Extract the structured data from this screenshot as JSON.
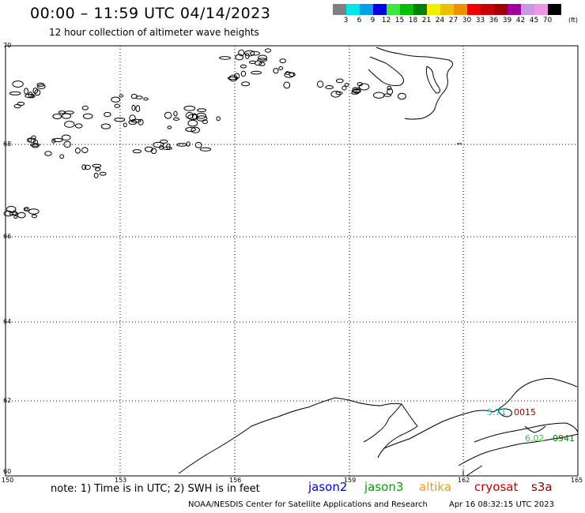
{
  "header": {
    "title": "00:00 – 11:59 UTC 04/14/2023",
    "subtitle": "12 hour collection of altimeter wave heights"
  },
  "legend": {
    "colors": [
      "#808080",
      "#00e6e6",
      "#00a0e6",
      "#0000e6",
      "#40e640",
      "#00c000",
      "#008000",
      "#f0f000",
      "#f0c000",
      "#f09000",
      "#f00000",
      "#c80000",
      "#a00000",
      "#a000a0",
      "#c896e6",
      "#f096e6",
      "#000000"
    ],
    "labels": [
      "3",
      "6",
      "9",
      "12",
      "15",
      "18",
      "21",
      "24",
      "27",
      "30",
      "33",
      "36",
      "39",
      "42",
      "45",
      "70"
    ],
    "unit": "(ft)"
  },
  "map": {
    "lon_ticks": [
      "150",
      "153",
      "156",
      "159",
      "162",
      "165"
    ],
    "lat_ticks": [
      "70",
      "68",
      "66",
      "64",
      "62",
      "60"
    ],
    "observations": [
      {
        "value": "5.71",
        "time": "0015",
        "value_color": "#00c8c8",
        "time_color": "#8b0000"
      },
      {
        "value": "6.02",
        "time": "0941",
        "value_color": "#40c040",
        "time_color": "#008000"
      }
    ]
  },
  "footer": {
    "note": "note:  1) Time is in UTC;  2) SWH is in feet",
    "satellites": [
      {
        "name": "jason2",
        "color": "#0000dc"
      },
      {
        "name": "jason3",
        "color": "#00a000"
      },
      {
        "name": "altika",
        "color": "#f0a000"
      },
      {
        "name": "cryosat",
        "color": "#c00000"
      },
      {
        "name": "s3a",
        "color": "#8b0000"
      }
    ],
    "credit": "NOAA/NESDIS Center for Satellite Applications and Research",
    "generated": "Apr 16 08:32:15 UTC 2023"
  }
}
